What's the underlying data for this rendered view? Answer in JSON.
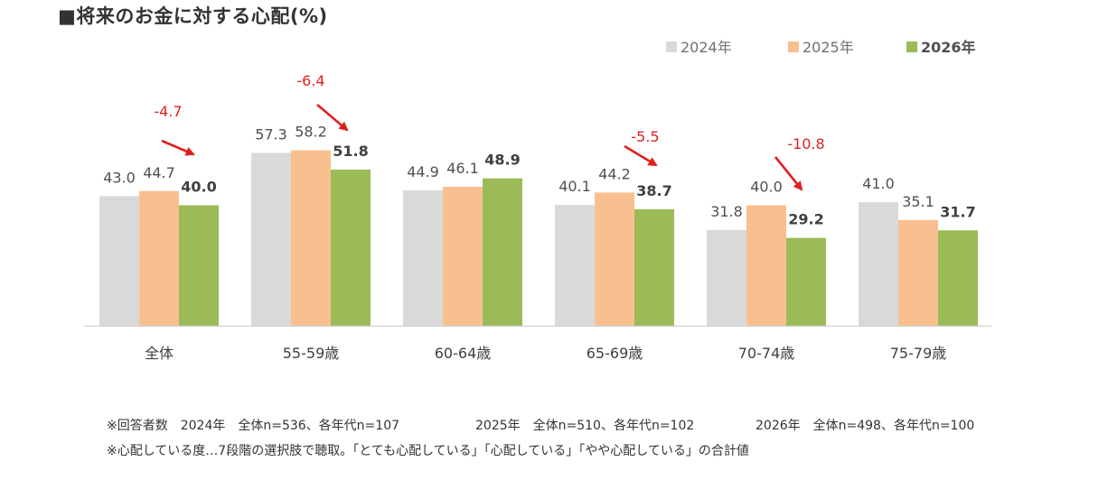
{
  "title": "■将来のお金に対する心配(%)",
  "chart_data": {
    "type": "bar",
    "title": "■将来のお金に対する心配(%)",
    "categories": [
      "全体",
      "55-59歳",
      "60-64歳",
      "65-69歳",
      "70-74歳",
      "75-79歳"
    ],
    "series": [
      {
        "name": "2024年",
        "values": [
          43.0,
          57.3,
          44.9,
          40.1,
          31.8,
          41.0
        ],
        "color": "#d9d9d9"
      },
      {
        "name": "2025年",
        "values": [
          44.7,
          58.2,
          46.1,
          44.2,
          40.0,
          35.1
        ],
        "color": "#f8c08f"
      },
      {
        "name": "2026年",
        "values": [
          40.0,
          51.8,
          48.9,
          38.7,
          29.2,
          31.7
        ],
        "color": "#9bbb59"
      }
    ],
    "value_labels": [
      [
        "43.0",
        "57.3",
        "44.9",
        "40.1",
        "31.8",
        "41.0"
      ],
      [
        "44.7",
        "58.2",
        "46.1",
        "44.2",
        "40.0",
        "35.1"
      ],
      [
        "40.0",
        "51.8",
        "48.9",
        "38.7",
        "29.2",
        "31.7"
      ]
    ],
    "annotations": [
      {
        "category": "全体",
        "text": "-4.7"
      },
      {
        "category": "55-59歳",
        "text": "-6.4"
      },
      {
        "category": "65-69歳",
        "text": "-5.5"
      },
      {
        "category": "70-74歳",
        "text": "-10.8"
      }
    ],
    "annotation_color": "#e02020",
    "legend_position": "top-right",
    "ylim": [
      0,
      100
    ],
    "grid": false,
    "xlabel": "",
    "ylabel": ""
  },
  "notes": {
    "line1": [
      "※回答者数　2024年　全体n=536、各年代n=107",
      "2025年　全体n=510、各年代n=102",
      "2026年　全体n=498、各年代n=100"
    ],
    "line2": "※心配している度…7段階の選択肢で聴取。「とても心配している」「心配している」「やや心配している」の合計値"
  }
}
